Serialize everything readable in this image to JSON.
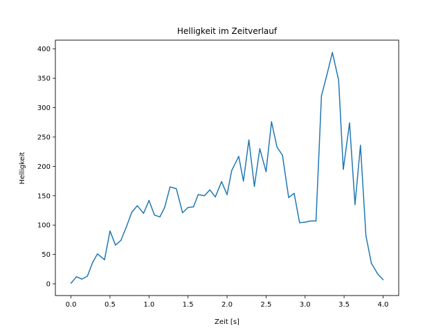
{
  "chart_data": {
    "type": "line",
    "title": "Helligkeit im Zeitverlauf",
    "xlabel": "Zeit [s]",
    "ylabel": "Helligkeit",
    "xlim": [
      -0.2,
      4.2
    ],
    "ylim": [
      -20,
      415
    ],
    "xticks": [
      0.0,
      0.5,
      1.0,
      1.5,
      2.0,
      2.5,
      3.0,
      3.5,
      4.0
    ],
    "xtick_labels": [
      "0.0",
      "0.5",
      "1.0",
      "1.5",
      "2.0",
      "2.5",
      "3.0",
      "3.5",
      "4.0"
    ],
    "yticks": [
      0,
      50,
      100,
      150,
      200,
      250,
      300,
      350,
      400
    ],
    "ytick_labels": [
      "0",
      "50",
      "100",
      "150",
      "200",
      "250",
      "300",
      "350",
      "400"
    ],
    "grid": false,
    "legend": "none",
    "series": [
      {
        "color": "#1f77b4",
        "x": [
          0.0,
          0.07,
          0.14,
          0.21,
          0.28,
          0.34,
          0.43,
          0.5,
          0.57,
          0.64,
          0.71,
          0.78,
          0.85,
          0.93,
          1.0,
          1.07,
          1.14,
          1.2,
          1.27,
          1.35,
          1.43,
          1.5,
          1.57,
          1.63,
          1.71,
          1.78,
          1.85,
          1.93,
          2.0,
          2.06,
          2.15,
          2.21,
          2.28,
          2.35,
          2.42,
          2.5,
          2.57,
          2.64,
          2.71,
          2.79,
          2.86,
          2.93,
          3.0,
          3.07,
          3.14,
          3.21,
          3.28,
          3.35,
          3.43,
          3.49,
          3.57,
          3.64,
          3.71,
          3.78,
          3.85,
          3.93,
          4.0
        ],
        "y": [
          1,
          12,
          8,
          13,
          37,
          51,
          41,
          90,
          66,
          74,
          97,
          122,
          133,
          120,
          142,
          117,
          114,
          130,
          165,
          162,
          121,
          130,
          131,
          152,
          150,
          160,
          148,
          174,
          152,
          193,
          217,
          175,
          245,
          166,
          230,
          191,
          276,
          233,
          219,
          147,
          154,
          104,
          105,
          107,
          107,
          320,
          356,
          394,
          347,
          195,
          274,
          135,
          236,
          82,
          35,
          17,
          7
        ]
      }
    ]
  }
}
